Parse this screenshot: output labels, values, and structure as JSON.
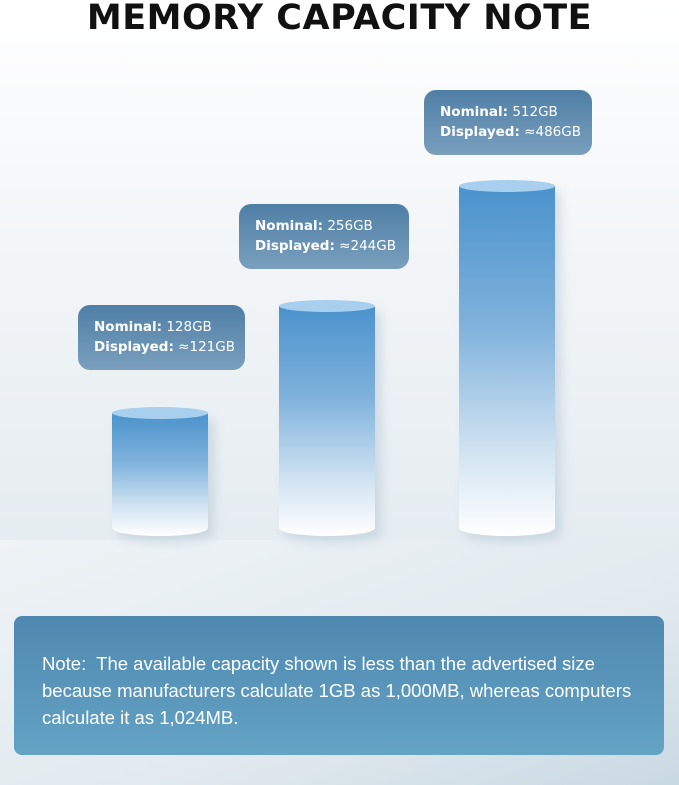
{
  "title": "MEMORY CAPACITY NOTE",
  "capacities": [
    {
      "nominal_label": "Nominal:",
      "nominal": "128GB",
      "displayed_label": "Displayed:",
      "displayed": "≈121GB"
    },
    {
      "nominal_label": "Nominal:",
      "nominal": "256GB",
      "displayed_label": "Displayed:",
      "displayed": "≈244GB"
    },
    {
      "nominal_label": "Nominal:",
      "nominal": "512GB",
      "displayed_label": "Displayed:",
      "displayed": "≈486GB"
    }
  ],
  "note": "Note:  The available capacity shown is less than the advertised size because manufacturers calculate 1GB as 1,000MB, whereas computers calculate it as 1,024MB.",
  "colors": {
    "cylinder": "#4a92cc",
    "label_bg": "#5f8bb0",
    "note_bg": "#5894ba"
  }
}
